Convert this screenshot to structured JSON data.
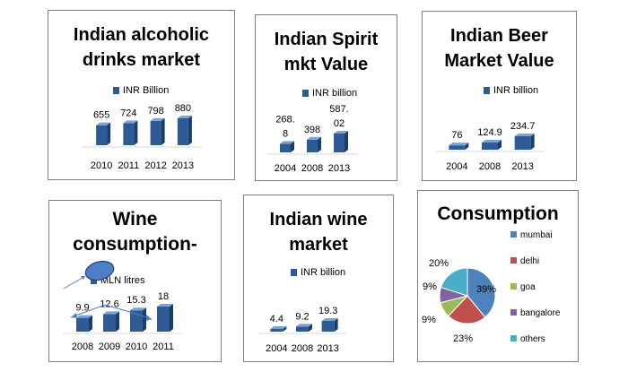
{
  "charts": [
    {
      "title_lines": [
        "Indian alcoholic",
        "drinks market"
      ],
      "chart_data": {
        "type": "bar",
        "categories": [
          "2010",
          "2011",
          "2012",
          "2013"
        ],
        "series": [
          {
            "name": "INR Billion",
            "values": [
              655,
              724,
              798,
              880
            ]
          }
        ],
        "value_labels": [
          [
            "655"
          ],
          [
            "724"
          ],
          [
            "798"
          ],
          [
            "880"
          ]
        ],
        "legend_position": "top"
      }
    },
    {
      "title_lines": [
        "Indian Spirit",
        "mkt Value"
      ],
      "chart_data": {
        "type": "bar",
        "categories": [
          "2004",
          "2008",
          "2013"
        ],
        "series": [
          {
            "name": "INR billion",
            "values": [
              268.8,
              398,
              587.02
            ]
          }
        ],
        "value_labels": [
          [
            "268.",
            "8"
          ],
          [
            "398"
          ],
          [
            "587.",
            "02"
          ]
        ],
        "legend_position": "top"
      }
    },
    {
      "title_lines": [
        "Indian Beer",
        "Market Value"
      ],
      "chart_data": {
        "type": "bar",
        "categories": [
          "2004",
          "2008",
          "2013"
        ],
        "series": [
          {
            "name": "INR billion",
            "values": [
              76,
              124.9,
              234.7
            ]
          }
        ],
        "value_labels": [
          [
            "76"
          ],
          [
            "124.9"
          ],
          [
            "234.7"
          ]
        ],
        "legend_position": "top"
      }
    },
    {
      "title_lines": [
        "Wine",
        "consumption-"
      ],
      "chart_data": {
        "type": "bar",
        "categories": [
          "2008",
          "2009",
          "2010",
          "2011"
        ],
        "series": [
          {
            "name": "MLN litres",
            "values": [
              9.9,
              12.6,
              15.3,
              18
            ]
          }
        ],
        "value_labels": [
          [
            "9.9"
          ],
          [
            "12.6"
          ],
          [
            "15.3"
          ],
          [
            "18"
          ]
        ],
        "legend_position": "top"
      }
    },
    {
      "title_lines": [
        "Indian wine",
        "market"
      ],
      "chart_data": {
        "type": "bar",
        "categories": [
          "2004",
          "2008",
          "2013"
        ],
        "series": [
          {
            "name": "INR billion",
            "values": [
              4.4,
              9.2,
              19.3
            ]
          }
        ],
        "value_labels": [
          [
            "4.4"
          ],
          [
            "9.2"
          ],
          [
            "19.3"
          ]
        ],
        "legend_position": "top"
      }
    },
    {
      "title_lines": [
        "Consumption"
      ],
      "chart_data": {
        "type": "pie",
        "categories": [
          "mumbai",
          "delhi",
          "goa",
          "bangalore",
          "others"
        ],
        "values": [
          39,
          23,
          9,
          9,
          20
        ],
        "value_labels": [
          "39%",
          "23%",
          "9%",
          "9%",
          "20%"
        ],
        "colors": [
          "#4f81bd",
          "#c0504d",
          "#9bbb59",
          "#8064a2",
          "#4bacc6"
        ],
        "legend_position": "right"
      }
    }
  ],
  "colors": {
    "bar_front": "#2e5a96",
    "bar_light": "#7aa4d8",
    "bar_dark": "#1c3c6a",
    "panel_border": "#7f7f7f",
    "ellipse_fill": "#4f7ec8",
    "arrow": "#4f81bd"
  }
}
